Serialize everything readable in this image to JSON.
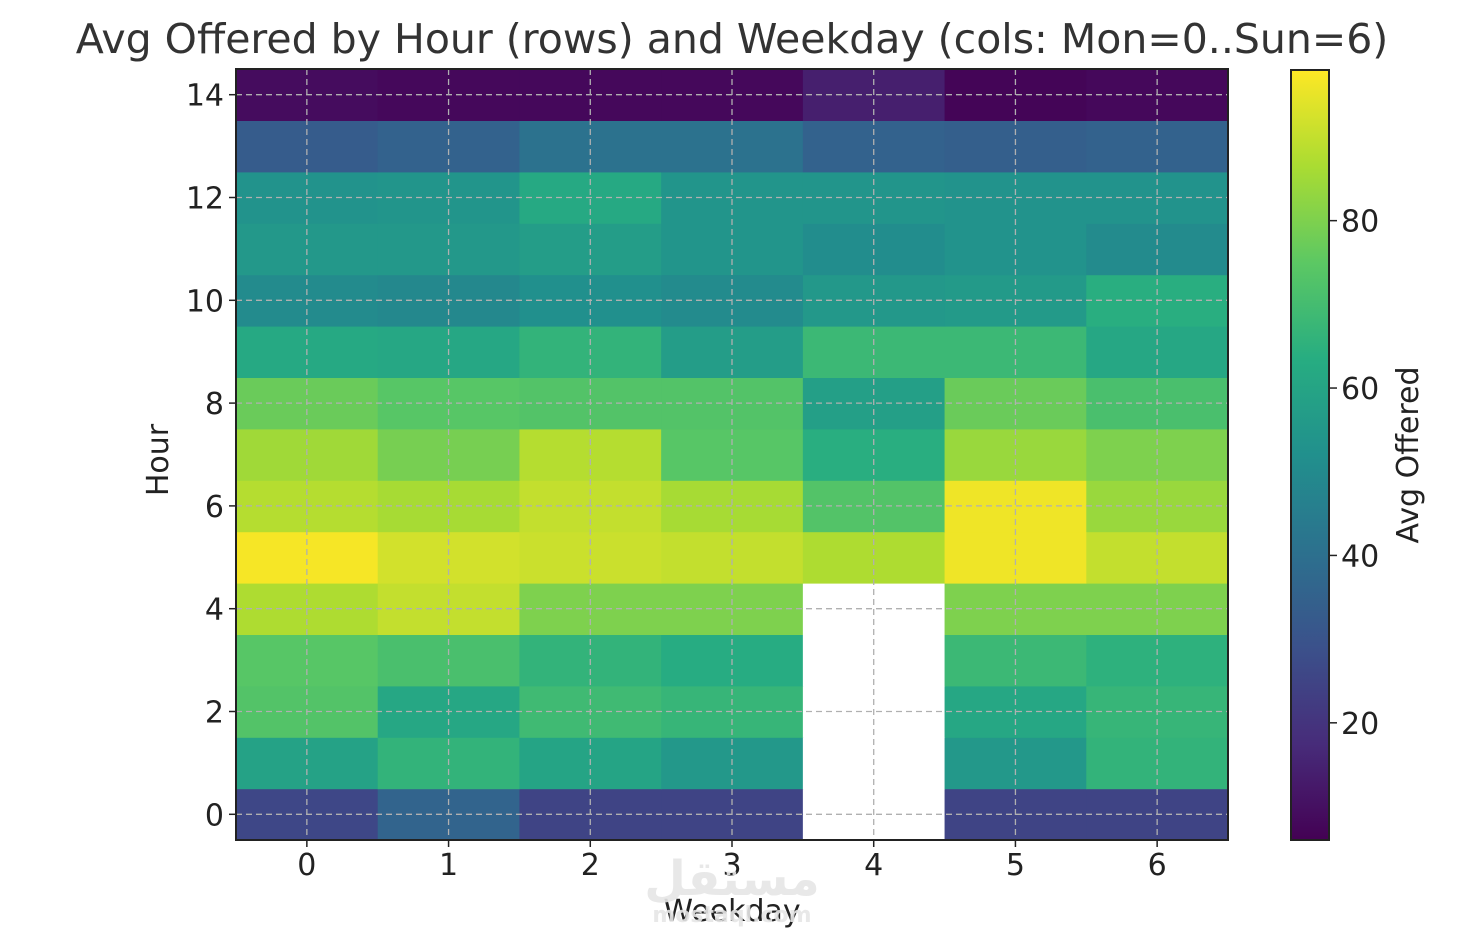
{
  "chart_data": {
    "type": "heatmap",
    "title": "Avg Offered by Hour (rows) and Weekday (cols: Mon=0..Sun=6)",
    "xlabel": "Weekday",
    "ylabel": "Hour",
    "colorbar_label": "Avg Offered",
    "colormap": "viridis",
    "color_range": [
      6,
      98
    ],
    "x_categories": [
      0,
      1,
      2,
      3,
      4,
      5,
      6
    ],
    "y_categories": [
      0,
      1,
      2,
      3,
      4,
      5,
      6,
      7,
      8,
      9,
      10,
      11,
      12,
      13,
      14
    ],
    "xticks": [
      "0",
      "1",
      "2",
      "3",
      "4",
      "5",
      "6"
    ],
    "yticks": [
      "0",
      "2",
      "4",
      "6",
      "8",
      "10",
      "12",
      "14"
    ],
    "colorbar_ticks": [
      "20",
      "40",
      "60",
      "80"
    ],
    "colorbar_tick_values": [
      20,
      40,
      60,
      80
    ],
    "grid": true,
    "values": [
      [
        26,
        36,
        25,
        25,
        null,
        25,
        25
      ],
      [
        59,
        66,
        60,
        55,
        null,
        55,
        66
      ],
      [
        73,
        61,
        69,
        67,
        null,
        61,
        67
      ],
      [
        74,
        71,
        66,
        63,
        null,
        68,
        65
      ],
      [
        87,
        90,
        80,
        80,
        null,
        80,
        80
      ],
      [
        97,
        92,
        91,
        90,
        87,
        96,
        90
      ],
      [
        88,
        86,
        90,
        86,
        73,
        96,
        84
      ],
      [
        85,
        79,
        88,
        74,
        64,
        84,
        80
      ],
      [
        77,
        74,
        73,
        73,
        58,
        77,
        71
      ],
      [
        62,
        61,
        66,
        57,
        68,
        68,
        61
      ],
      [
        50,
        49,
        52,
        50,
        55,
        56,
        64
      ],
      [
        55,
        55,
        57,
        54,
        51,
        53,
        50
      ],
      [
        53,
        54,
        62,
        54,
        54,
        53,
        53
      ],
      [
        33,
        35,
        41,
        41,
        35,
        34,
        35
      ],
      [
        9,
        8,
        8,
        8,
        14,
        7,
        8
      ]
    ]
  },
  "watermark": {
    "text": "مستقل",
    "subtext": "mostaql.com"
  }
}
